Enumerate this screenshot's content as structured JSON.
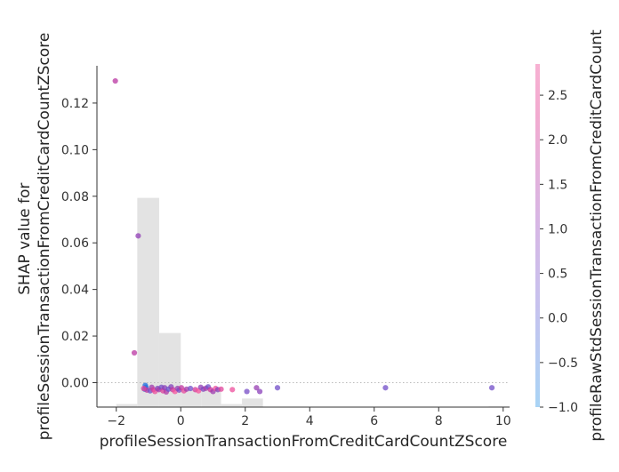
{
  "chart_data": {
    "type": "scatter",
    "title": "",
    "xlabel": "profileSessionTransactionFromCreditCardCountZScore",
    "ylabel": "SHAP value for\nprofileSessionTransactionFromCreditCardCountZScore",
    "xlim": [
      -2.6,
      10.2
    ],
    "ylim": [
      -0.0105,
      0.136
    ],
    "x_ticks": [
      -2,
      0,
      2,
      4,
      6,
      8,
      10
    ],
    "y_ticks": [
      0.0,
      0.02,
      0.04,
      0.06,
      0.08,
      0.1,
      0.12
    ],
    "x_tick_labels": [
      "−2",
      "0",
      "2",
      "4",
      "6",
      "8",
      "10"
    ],
    "y_tick_labels": [
      "0.00",
      "0.02",
      "0.04",
      "0.06",
      "0.08",
      "0.10",
      "0.12"
    ],
    "grid": false,
    "zero_line": true,
    "colorbar": {
      "label": "profileRawStdSessionTransactionFromCreditCardCount",
      "range": [
        -1.0,
        2.85
      ],
      "ticks": [
        -1.0,
        -0.5,
        0.0,
        0.5,
        1.0,
        1.5,
        2.0,
        2.5
      ],
      "tick_labels": [
        "−1.0",
        "−0.5",
        "0.0",
        "0.5",
        "1.0",
        "1.5",
        "2.0",
        "2.5"
      ],
      "colors": [
        "#a9d4f5",
        "#c7c2ee",
        "#d8b6e4",
        "#f2abd0",
        "#f7b1d2"
      ]
    },
    "histogram": {
      "color": "#e3e3e3",
      "bins": [
        {
          "x0": -2.55,
          "x1": -2.0,
          "value": -0.0102
        },
        {
          "x0": -2.0,
          "x1": -1.35,
          "value": -0.0092
        },
        {
          "x0": -1.35,
          "x1": -0.67,
          "value": 0.0793
        },
        {
          "x0": -0.67,
          "x1": 0.0,
          "value": 0.0213
        },
        {
          "x0": 0.0,
          "x1": 0.65,
          "value": -0.0031
        },
        {
          "x0": 0.65,
          "x1": 1.25,
          "value": -0.0031
        },
        {
          "x0": 1.25,
          "x1": 1.9,
          "value": -0.0092
        },
        {
          "x0": 1.9,
          "x1": 2.55,
          "value": -0.0068
        },
        {
          "x0": 9.55,
          "x1": 10.2,
          "value": -0.0102
        }
      ]
    },
    "points": [
      {
        "x": -2.03,
        "y": 0.1295,
        "c": 1.8
      },
      {
        "x": -1.32,
        "y": 0.063,
        "c": 1.2
      },
      {
        "x": -1.44,
        "y": 0.0128,
        "c": 1.8
      },
      {
        "x": -1.1,
        "y": -0.0012,
        "c": -1.0
      },
      {
        "x": -1.08,
        "y": -0.002,
        "c": -0.9
      },
      {
        "x": -1.12,
        "y": -0.0028,
        "c": -0.8
      },
      {
        "x": -1.05,
        "y": -0.0032,
        "c": 1.9
      },
      {
        "x": -1.15,
        "y": -0.0025,
        "c": 2.4
      },
      {
        "x": -0.95,
        "y": -0.0035,
        "c": 0.6
      },
      {
        "x": -0.9,
        "y": -0.002,
        "c": 1.4
      },
      {
        "x": -0.85,
        "y": -0.003,
        "c": 2.2
      },
      {
        "x": -0.8,
        "y": -0.0038,
        "c": 2.6
      },
      {
        "x": -0.72,
        "y": -0.0025,
        "c": 0.9
      },
      {
        "x": -0.68,
        "y": -0.003,
        "c": 1.6
      },
      {
        "x": -0.6,
        "y": -0.002,
        "c": 0.7
      },
      {
        "x": -0.55,
        "y": -0.0035,
        "c": 2.3
      },
      {
        "x": -0.5,
        "y": -0.0022,
        "c": 1.1
      },
      {
        "x": -0.45,
        "y": -0.004,
        "c": 1.7
      },
      {
        "x": -0.38,
        "y": -0.0028,
        "c": 0.4
      },
      {
        "x": -0.3,
        "y": -0.0018,
        "c": 1.0
      },
      {
        "x": -0.25,
        "y": -0.003,
        "c": 2.0
      },
      {
        "x": -0.18,
        "y": -0.0038,
        "c": 2.7
      },
      {
        "x": -0.1,
        "y": -0.0025,
        "c": 1.3
      },
      {
        "x": -0.05,
        "y": -0.0032,
        "c": 0.8
      },
      {
        "x": 0.02,
        "y": -0.0022,
        "c": 1.9
      },
      {
        "x": 0.1,
        "y": -0.0035,
        "c": 2.5
      },
      {
        "x": 0.18,
        "y": -0.0028,
        "c": 1.5
      },
      {
        "x": 0.3,
        "y": -0.0025,
        "c": 0.6
      },
      {
        "x": 0.45,
        "y": -0.003,
        "c": 2.2
      },
      {
        "x": 0.55,
        "y": -0.0035,
        "c": 2.7
      },
      {
        "x": 0.62,
        "y": -0.002,
        "c": 1.2
      },
      {
        "x": 0.7,
        "y": -0.0028,
        "c": 0.9
      },
      {
        "x": 0.78,
        "y": -0.0024,
        "c": 1.6
      },
      {
        "x": 0.85,
        "y": -0.0018,
        "c": 0.5
      },
      {
        "x": 0.92,
        "y": -0.003,
        "c": 2.1
      },
      {
        "x": 1.0,
        "y": -0.0038,
        "c": 1.4
      },
      {
        "x": 1.08,
        "y": -0.0025,
        "c": 2.6
      },
      {
        "x": 1.15,
        "y": -0.003,
        "c": 1.0
      },
      {
        "x": 1.25,
        "y": -0.0028,
        "c": 2.4
      },
      {
        "x": 1.6,
        "y": -0.003,
        "c": 2.6
      },
      {
        "x": 2.05,
        "y": -0.0038,
        "c": 0.7
      },
      {
        "x": 2.35,
        "y": -0.0022,
        "c": 1.3
      },
      {
        "x": 2.45,
        "y": -0.0038,
        "c": 1.1
      },
      {
        "x": 3.0,
        "y": -0.0022,
        "c": 0.6
      },
      {
        "x": 6.35,
        "y": -0.0022,
        "c": 0.6
      },
      {
        "x": 9.65,
        "y": -0.0022,
        "c": 0.6
      }
    ]
  }
}
